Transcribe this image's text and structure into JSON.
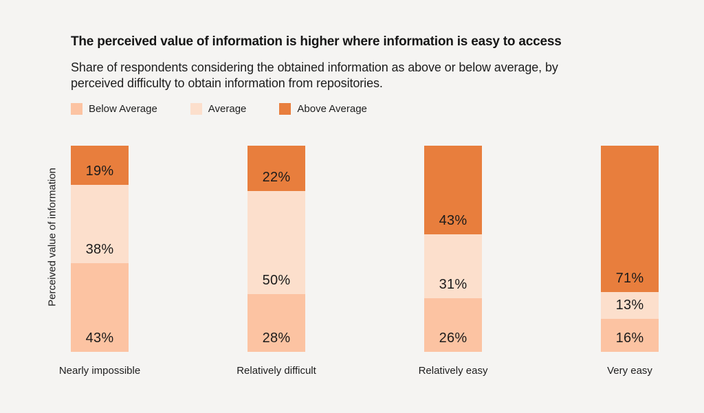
{
  "page": {
    "background_color": "#f5f4f2"
  },
  "header": {
    "title": "The perceived value of information is higher where information is easy to access",
    "subtitle": "Share of respondents considering the obtained information as above or below average, by perceived difficulty to obtain information from repositories."
  },
  "colors": {
    "below_average": "#fcc3a2",
    "average": "#fcdfcc",
    "above_average": "#e87e3d",
    "text": "#1d1d1d"
  },
  "chart_data": {
    "type": "bar",
    "variant": "stacked-100-percent",
    "orientation": "vertical",
    "title": "The perceived value of information is higher where information is easy to access",
    "subtitle": "Share of respondents considering the obtained information as above or below average, by perceived difficulty to obtain information from repositories.",
    "xlabel": "",
    "ylabel": "Perceived value of information",
    "unit": "%",
    "ylim": [
      0,
      100
    ],
    "grid": false,
    "legend_position": "top",
    "categories": [
      "Nearly impossible",
      "Relatively difficult",
      "Relatively easy",
      "Very easy"
    ],
    "series": [
      {
        "name": "Below Average",
        "color": "#fcc3a2",
        "values": [
          43,
          28,
          26,
          16
        ]
      },
      {
        "name": "Average",
        "color": "#fcdfcc",
        "values": [
          38,
          50,
          31,
          13
        ]
      },
      {
        "name": "Above Average",
        "color": "#e87e3d",
        "values": [
          19,
          22,
          43,
          71
        ]
      }
    ],
    "segment_order_top_to_bottom": [
      "Above Average",
      "Average",
      "Below Average"
    ],
    "value_label_position": "inside-bottom"
  }
}
